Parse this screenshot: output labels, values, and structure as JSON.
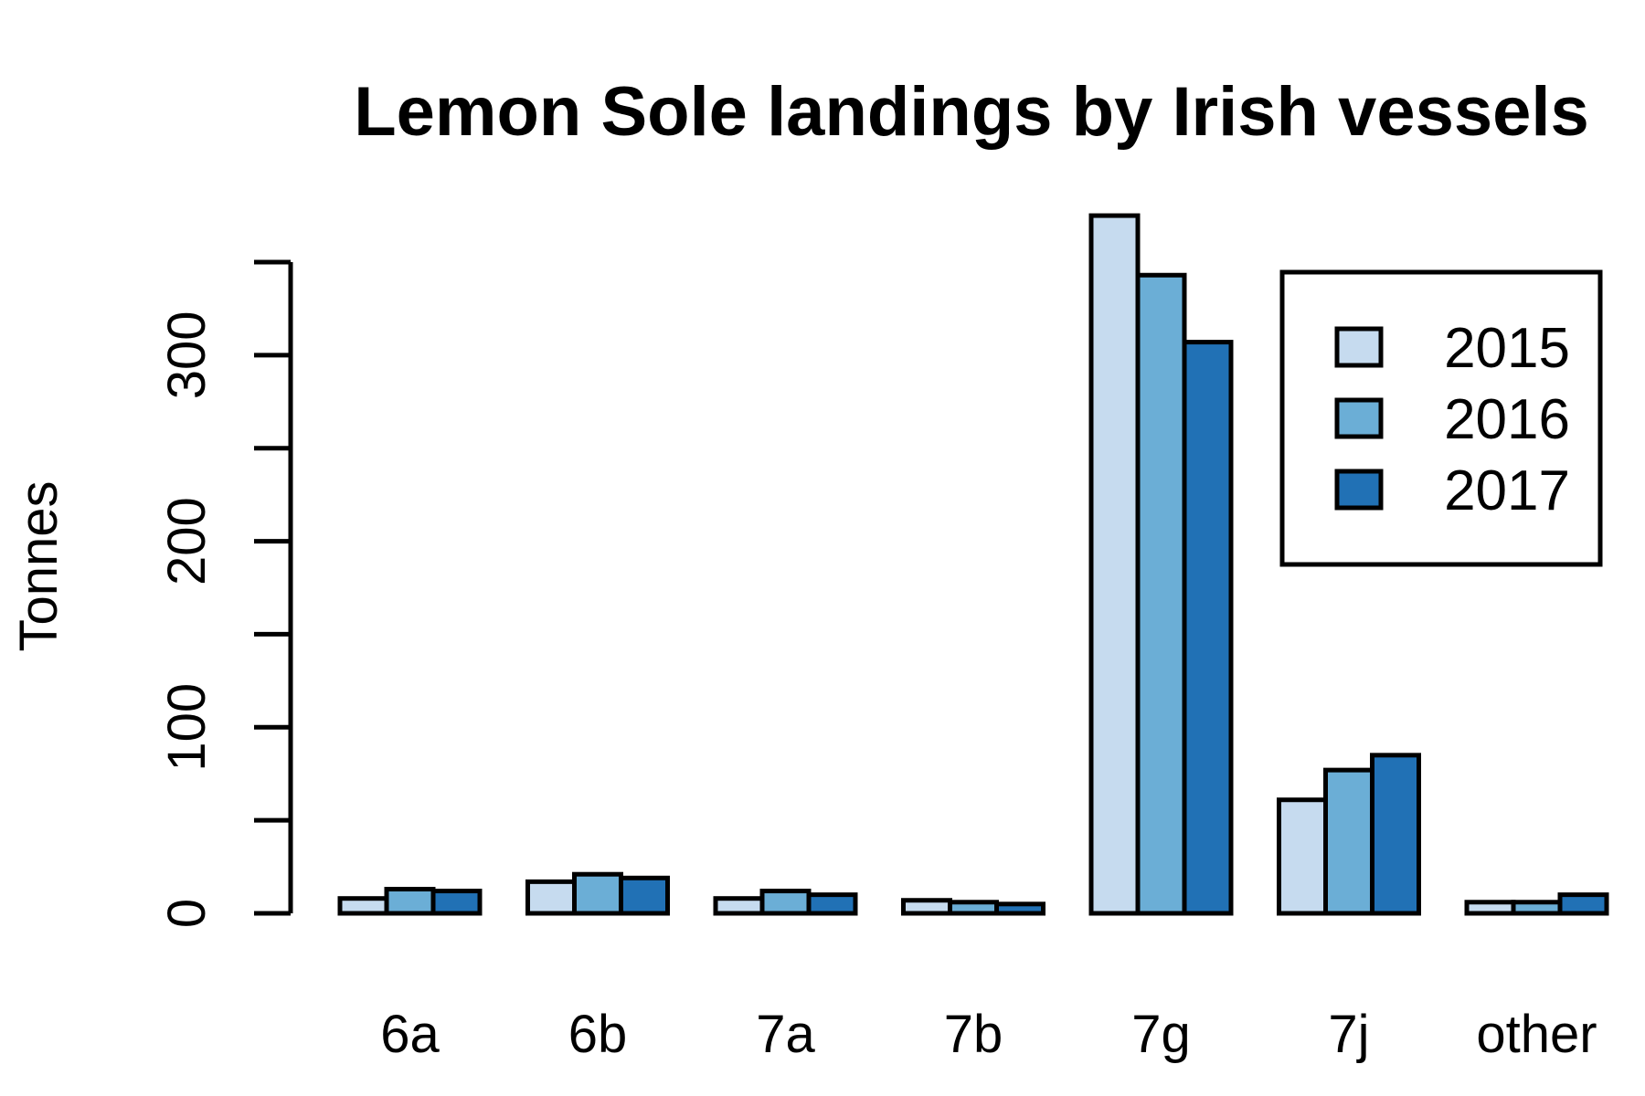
{
  "chart_data": {
    "type": "bar",
    "title": "Lemon Sole landings by Irish vessels",
    "ylabel": "Tonnes",
    "xlabel": "",
    "categories": [
      "6a",
      "6b",
      "7a",
      "7b",
      "7g",
      "7j",
      "other"
    ],
    "series": [
      {
        "name": "2015",
        "color": "#C6DBEF",
        "values": [
          8,
          17,
          8,
          7,
          375,
          61,
          6
        ]
      },
      {
        "name": "2016",
        "color": "#6BAED6",
        "values": [
          13,
          21,
          12,
          6,
          343,
          77,
          6
        ]
      },
      {
        "name": "2017",
        "color": "#2171B5",
        "values": [
          12,
          19,
          10,
          5,
          307,
          85,
          10
        ]
      }
    ],
    "ylim": [
      0,
      350
    ],
    "yticks": [
      0,
      50,
      100,
      150,
      200,
      250,
      300,
      350
    ],
    "ytick_labels": [
      "0",
      "",
      "100",
      "",
      "200",
      "",
      "300",
      ""
    ],
    "legend_position": "top-right",
    "grid": false
  }
}
